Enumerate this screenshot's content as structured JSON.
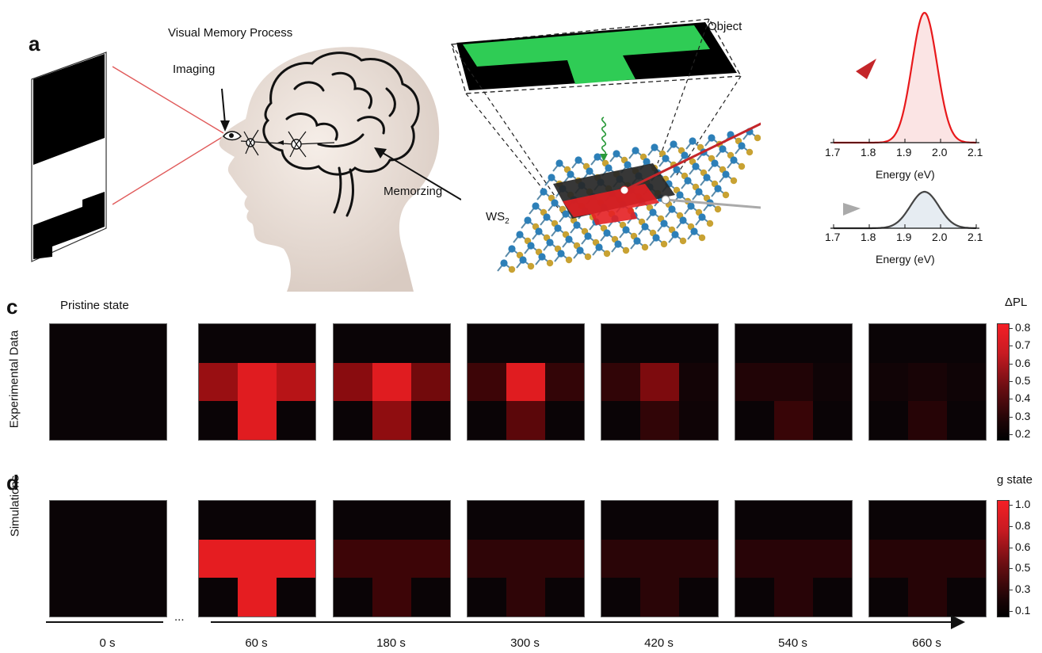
{
  "panel_labels": {
    "a": "a",
    "c": "c",
    "d": "d"
  },
  "panel_a": {
    "title": "Visual Memory Process",
    "imaging_label": "Imaging",
    "memorizing_label": "Memorzing",
    "object_label": "Object",
    "material_label": "WS",
    "material_subscript": "2",
    "spectrum_top": {
      "xlabel": "Energy (eV)",
      "ticks": [
        "1.7",
        "1.8",
        "1.9",
        "2.0",
        "2.1"
      ],
      "color": "#e8191c"
    },
    "spectrum_bottom": {
      "xlabel": "Energy (eV)",
      "ticks": [
        "1.7",
        "1.8",
        "1.9",
        "2.0",
        "2.1"
      ],
      "color": "#444444"
    }
  },
  "row_c": {
    "ylabel": "Experimental Data",
    "pristine_label": "Pristine state",
    "colorbar_title": "ΔPL",
    "colorbar_ticks": [
      "0.8",
      "0.7",
      "0.6",
      "0.5",
      "0.4",
      "0.3",
      "0.2"
    ]
  },
  "row_d": {
    "ylabel": "Simulations",
    "colorbar_title": "g state",
    "colorbar_ticks": [
      "1.0",
      "0.8",
      "0.6",
      "0.5",
      "0.3",
      "0.1"
    ]
  },
  "timeline": {
    "ellipsis": "...",
    "times": [
      "0 s",
      "60 s",
      "180 s",
      "300 s",
      "420 s",
      "540 s",
      "660 s"
    ]
  },
  "colors": {
    "red": "#ee2424",
    "green": "#2fcc55",
    "black": "#000000"
  }
}
